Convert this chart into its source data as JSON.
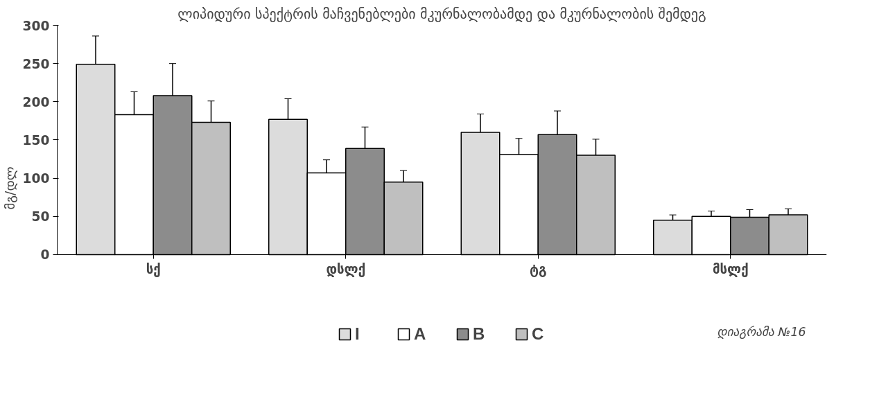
{
  "chart_data": {
    "type": "bar",
    "title": "ლიპიდური სპექტრის მაჩვენებლები მკურნალობამდე და მკურნალობის შემდეგ",
    "ylabel": "მგ/დლ",
    "categories": [
      "სქ",
      "დსლქ",
      "ტგ",
      "მსლქ"
    ],
    "series": [
      {
        "name": "I",
        "color": "#dcdcdc",
        "values": [
          249,
          177,
          160,
          45
        ],
        "errors": [
          37,
          27,
          24,
          7
        ]
      },
      {
        "name": "A",
        "color": "#ffffff",
        "values": [
          183,
          107,
          131,
          50
        ],
        "errors": [
          30,
          17,
          21,
          7
        ]
      },
      {
        "name": "B",
        "color": "#8c8c8c",
        "values": [
          208,
          139,
          157,
          49
        ],
        "errors": [
          42,
          28,
          31,
          10
        ]
      },
      {
        "name": "C",
        "color": "#bfbfbf",
        "values": [
          173,
          95,
          130,
          52
        ],
        "errors": [
          28,
          15,
          21,
          8
        ]
      }
    ],
    "ylim": [
      0,
      300
    ],
    "yticks": [
      0,
      50,
      100,
      150,
      200,
      250,
      300
    ],
    "grid": false,
    "legend": "bottom",
    "annotations": [
      "დიაგრამა №16"
    ]
  }
}
